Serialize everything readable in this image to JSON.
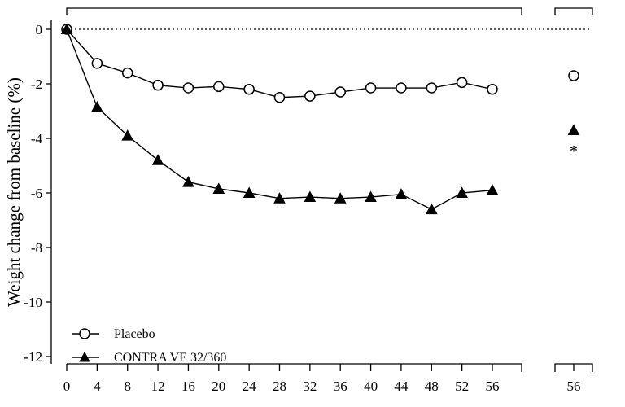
{
  "chart_data": {
    "type": "line",
    "title": "",
    "xlabel": "",
    "ylabel": "Weight change from baseline (%)",
    "ylim": [
      -12.5,
      0
    ],
    "yticks": [
      0,
      -2,
      -4,
      -6,
      -8,
      -10,
      -12
    ],
    "grid": false,
    "reference_line": {
      "y": 0,
      "style": "dotted"
    },
    "legend_position": "bottom-left",
    "main_panel": {
      "xticks": [
        0,
        4,
        8,
        12,
        16,
        20,
        24,
        28,
        32,
        36,
        40,
        44,
        48,
        52,
        56
      ],
      "x": [
        0,
        4,
        8,
        12,
        16,
        20,
        24,
        28,
        32,
        36,
        40,
        44,
        48,
        52,
        56
      ]
    },
    "endpoint_panel": {
      "xtick_label": "56",
      "annotation": "*"
    },
    "series": [
      {
        "name": "Placebo",
        "marker": "open-circle",
        "values": [
          0,
          -1.25,
          -1.6,
          -2.05,
          -2.15,
          -2.1,
          -2.2,
          -2.5,
          -2.45,
          -2.3,
          -2.15,
          -2.15,
          -2.15,
          -1.95,
          -2.2
        ],
        "endpoint_value": -1.7
      },
      {
        "name": "CONTRA VE 32/360",
        "marker": "filled-triangle",
        "values": [
          0,
          -2.85,
          -3.9,
          -4.8,
          -5.6,
          -5.85,
          -6.0,
          -6.2,
          -6.15,
          -6.2,
          -6.15,
          -6.05,
          -6.6,
          -6.0,
          -5.9
        ],
        "endpoint_value": -3.7
      }
    ]
  }
}
